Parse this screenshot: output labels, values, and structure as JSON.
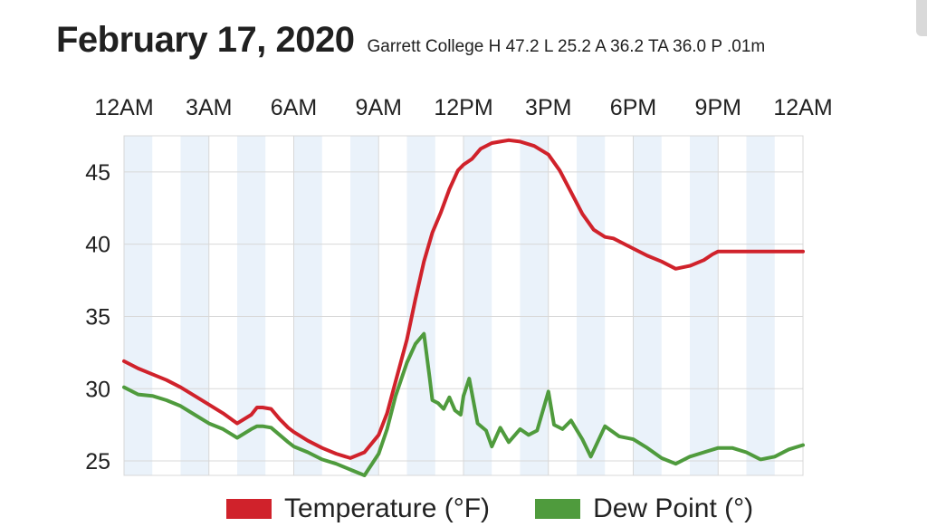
{
  "header": {
    "date": "February 17, 2020",
    "summary": "Garrett College H 47.2 L 25.2 A 36.2 TA 36.0 P .01m"
  },
  "colors": {
    "temperature": "#d0222b",
    "dew_point": "#4f9b3d",
    "band": "#eaf2fa",
    "grid": "#d8d8d8"
  },
  "chart_data": {
    "type": "line",
    "title": "",
    "xlabel": "",
    "ylabel": "",
    "x_unit": "hour of day",
    "xlim": [
      0,
      24
    ],
    "ylim": [
      24,
      47.5
    ],
    "x_ticks": [
      {
        "label": "12AM",
        "hour": 0
      },
      {
        "label": "3AM",
        "hour": 3
      },
      {
        "label": "6AM",
        "hour": 6
      },
      {
        "label": "9AM",
        "hour": 9
      },
      {
        "label": "12PM",
        "hour": 12
      },
      {
        "label": "3PM",
        "hour": 15
      },
      {
        "label": "6PM",
        "hour": 18
      },
      {
        "label": "9PM",
        "hour": 21
      },
      {
        "label": "12AM",
        "hour": 24
      }
    ],
    "y_ticks": [
      25,
      30,
      35,
      40,
      45
    ],
    "grid": true,
    "legend_position": "bottom",
    "series": [
      {
        "name": "Temperature (°F)",
        "color": "#d0222b",
        "x": [
          0,
          0.5,
          1,
          1.5,
          2,
          2.5,
          3,
          3.5,
          4,
          4.5,
          4.7,
          4.9,
          5.2,
          5.5,
          5.8,
          6,
          6.5,
          7,
          7.5,
          8,
          8.5,
          9,
          9.3,
          9.6,
          10,
          10.3,
          10.6,
          10.9,
          11.2,
          11.5,
          11.8,
          12,
          12.3,
          12.6,
          13,
          13.3,
          13.6,
          14,
          14.5,
          15,
          15.4,
          15.8,
          16.2,
          16.6,
          17,
          17.3,
          17.6,
          18,
          18.5,
          19,
          19.5,
          20,
          20.5,
          20.8,
          21,
          21.3,
          21.6,
          22,
          22.3,
          22.6,
          23,
          23.5,
          24
        ],
        "y": [
          31.9,
          31.4,
          31.0,
          30.6,
          30.1,
          29.5,
          28.9,
          28.3,
          27.6,
          28.2,
          28.7,
          28.7,
          28.6,
          27.9,
          27.3,
          27.0,
          26.4,
          25.9,
          25.5,
          25.2,
          25.6,
          26.8,
          28.3,
          30.5,
          33.4,
          36.2,
          38.8,
          40.8,
          42.2,
          43.8,
          45.1,
          45.5,
          45.9,
          46.6,
          47.0,
          47.1,
          47.2,
          47.1,
          46.8,
          46.2,
          45.1,
          43.6,
          42.1,
          41.0,
          40.5,
          40.4,
          40.1,
          39.7,
          39.2,
          38.8,
          38.3,
          38.5,
          38.9,
          39.3,
          39.5,
          39.5,
          39.5,
          39.5,
          39.5,
          39.5,
          39.5,
          39.5,
          39.5
        ]
      },
      {
        "name": "Dew Point (°)",
        "color": "#4f9b3d",
        "x": [
          0,
          0.5,
          1,
          1.5,
          2,
          2.5,
          3,
          3.5,
          4,
          4.5,
          4.7,
          4.9,
          5.2,
          5.5,
          5.8,
          6,
          6.5,
          7,
          7.5,
          8,
          8.5,
          9,
          9.3,
          9.6,
          10,
          10.3,
          10.6,
          10.8,
          10.9,
          11.1,
          11.3,
          11.5,
          11.7,
          11.9,
          12,
          12.2,
          12.5,
          12.8,
          13,
          13.3,
          13.6,
          14,
          14.3,
          14.6,
          15,
          15.2,
          15.5,
          15.8,
          16.2,
          16.5,
          17,
          17.5,
          18,
          18.5,
          19,
          19.5,
          20,
          20.5,
          21,
          21.5,
          22,
          22.5,
          23,
          23.5,
          24
        ],
        "y": [
          30.1,
          29.6,
          29.5,
          29.2,
          28.8,
          28.2,
          27.6,
          27.2,
          26.6,
          27.2,
          27.4,
          27.4,
          27.3,
          26.8,
          26.3,
          26.0,
          25.6,
          25.1,
          24.8,
          24.4,
          24.0,
          25.5,
          27.2,
          29.5,
          31.8,
          33.1,
          33.8,
          30.8,
          29.2,
          29.0,
          28.6,
          29.4,
          28.5,
          28.2,
          29.5,
          30.7,
          27.6,
          27.1,
          26.0,
          27.3,
          26.3,
          27.2,
          26.8,
          27.1,
          29.8,
          27.5,
          27.2,
          27.8,
          26.5,
          25.3,
          27.4,
          26.7,
          26.5,
          25.9,
          25.2,
          24.8,
          25.3,
          25.6,
          25.9,
          25.9,
          25.6,
          25.1,
          25.3,
          25.8,
          26.1
        ]
      }
    ]
  }
}
